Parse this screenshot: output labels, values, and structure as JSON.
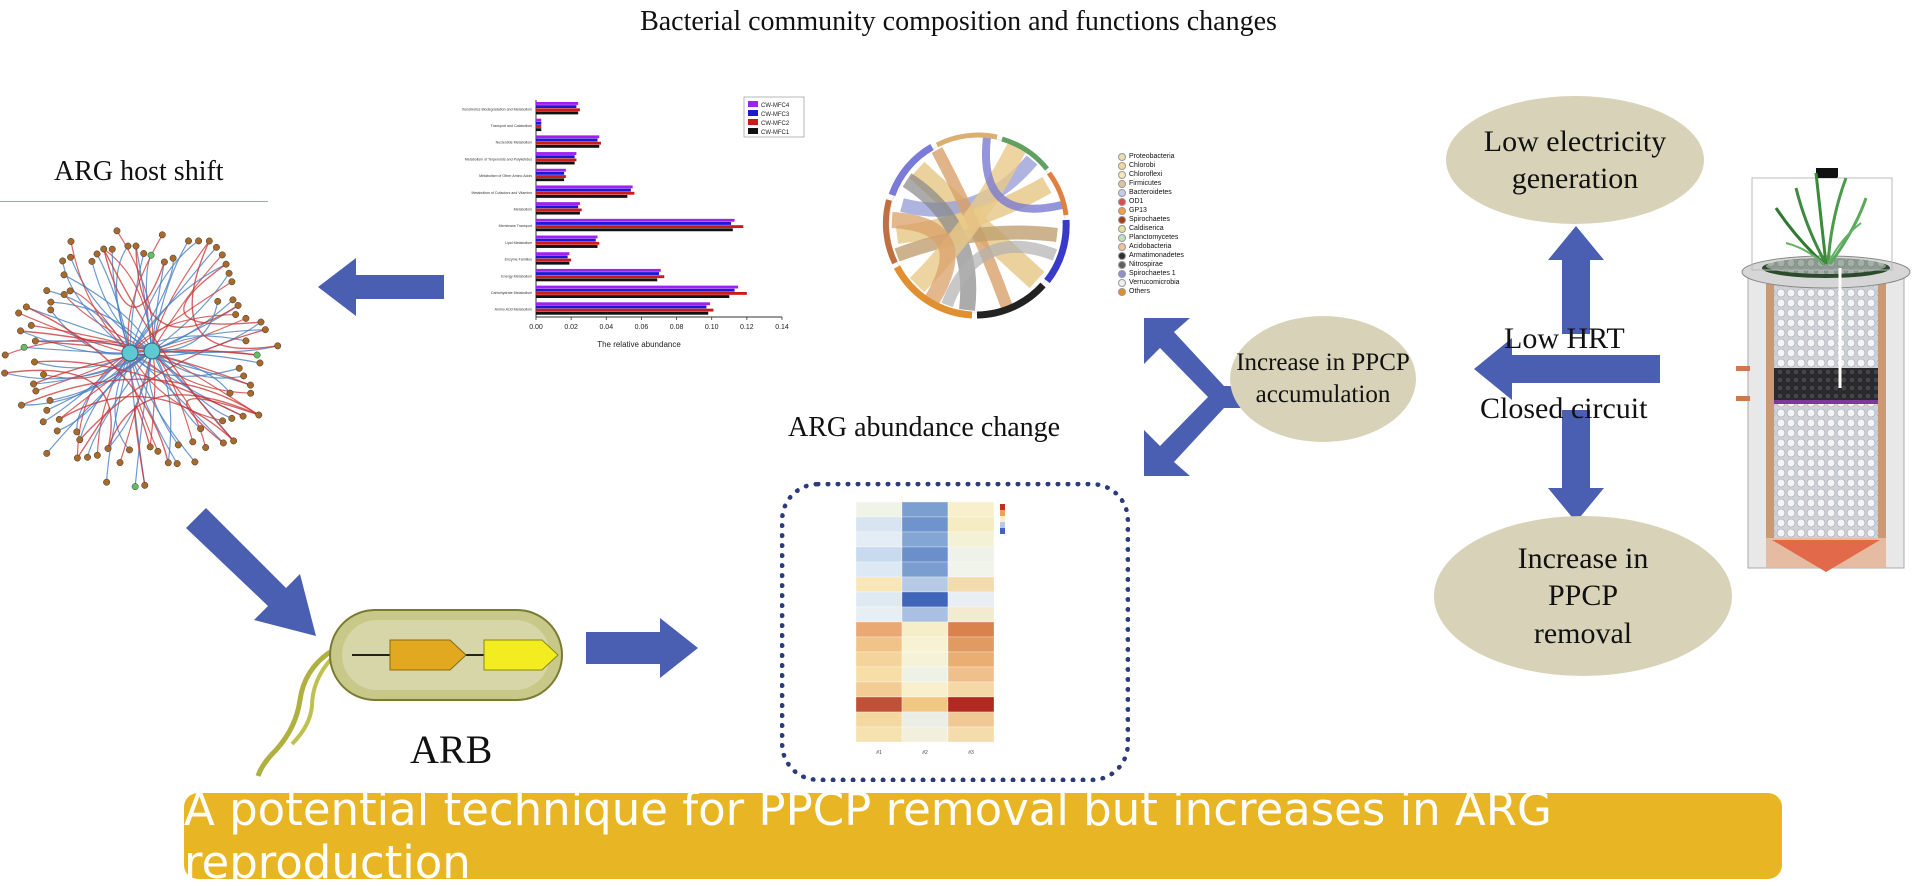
{
  "title": "Bacterial  community composition and functions changes",
  "arg_host_shift_label": "ARG host shift",
  "arb_label": "ARB",
  "arg_abundance_label": "ARG abundance change",
  "increase_accumulation": "Increase in PPCP accumulation",
  "low_hrt": "Low HRT",
  "closed_circuit": "Closed circuit",
  "low_electricity": "Low electricity generation",
  "increase_removal": "Increase in PPCP removal",
  "banner": "A potential technique for PPCP removal but increases in ARG reproduction",
  "colors": {
    "arrow": "#4a5fb2",
    "oval": "#d8d3b8",
    "banner": "#e8b624",
    "heatmap_border": "#2b3a7a"
  },
  "chart_data": {
    "type": "bar",
    "orientation": "horizontal",
    "xlabel": "The relative abundance",
    "xlim": [
      0.0,
      0.14
    ],
    "xticks": [
      "0.00",
      "0.02",
      "0.04",
      "0.06",
      "0.08",
      "0.10",
      "0.12",
      "0.14"
    ],
    "categories": [
      "Xenobiotics Biodegradation and Metabolism",
      "Transport and Catabolism",
      "Nucleotide Metabolism",
      "Metabolism of Terpenoids and Polyketides",
      "Metabolism of Other Amino Acids",
      "Metabolism of Cofactors and Vitamins",
      "Metabolism",
      "Membrane Transport",
      "Lipid Metabolism",
      "Enzyme Families",
      "Energy Metabolism",
      "Carbohydrate Metabolism",
      "Amino Acid Metabolism"
    ],
    "series": [
      {
        "name": "CW-MFC4",
        "color": "#a020f0",
        "values": [
          0.024,
          0.003,
          0.036,
          0.023,
          0.017,
          0.055,
          0.025,
          0.113,
          0.035,
          0.019,
          0.071,
          0.115,
          0.099
        ]
      },
      {
        "name": "CW-MFC3",
        "color": "#1a1ad6",
        "values": [
          0.023,
          0.003,
          0.035,
          0.022,
          0.016,
          0.054,
          0.024,
          0.111,
          0.034,
          0.018,
          0.07,
          0.113,
          0.097
        ]
      },
      {
        "name": "CW-MFC2",
        "color": "#cc1a1a",
        "values": [
          0.025,
          0.003,
          0.037,
          0.023,
          0.017,
          0.056,
          0.026,
          0.118,
          0.036,
          0.02,
          0.073,
          0.12,
          0.101
        ]
      },
      {
        "name": "CW-MFC1",
        "color": "#111111",
        "values": [
          0.024,
          0.003,
          0.036,
          0.022,
          0.016,
          0.052,
          0.025,
          0.112,
          0.035,
          0.019,
          0.069,
          0.11,
          0.098
        ]
      }
    ],
    "grid": false,
    "legend_position": "top-right"
  },
  "chord_legend": [
    {
      "name": "Proteobacteria",
      "color": "#e8e0b0"
    },
    {
      "name": "Chlorobi",
      "color": "#f3d9a0"
    },
    {
      "name": "Chloroflexi",
      "color": "#f5e8b8"
    },
    {
      "name": "Firmicutes",
      "color": "#d9c6a0"
    },
    {
      "name": "Bacteroidetes",
      "color": "#c9c9f0"
    },
    {
      "name": "OD1",
      "color": "#e04a4a"
    },
    {
      "name": "GP13",
      "color": "#f0a040"
    },
    {
      "name": "Spirochaetes",
      "color": "#a04020"
    },
    {
      "name": "Caldiserica",
      "color": "#e0e0a0"
    },
    {
      "name": "Planctomycetes",
      "color": "#c0e0c0"
    },
    {
      "name": "Acidobacteria",
      "color": "#f0c0a0"
    },
    {
      "name": "Armatimonadetes",
      "color": "#303030"
    },
    {
      "name": "Nitrospirae",
      "color": "#606060"
    },
    {
      "name": "Spirochaetes 1",
      "color": "#9090d0"
    },
    {
      "name": "Verrucomicrobia",
      "color": "#f0f0f0"
    },
    {
      "name": "Others",
      "color": "#e09020"
    }
  ],
  "heatmap": {
    "columns": [
      "#1",
      "#2",
      "#3"
    ],
    "rows": [
      {
        "c": [
          "#f0f4e8",
          "#7a9fd0",
          "#f8f0cc"
        ]
      },
      {
        "c": [
          "#d8e4f2",
          "#6f93cc",
          "#f6ecc4"
        ]
      },
      {
        "c": [
          "#e4ecf6",
          "#84a6d4",
          "#f4f2d6"
        ]
      },
      {
        "c": [
          "#c8daee",
          "#6a8fcb",
          "#eef2e8"
        ]
      },
      {
        "c": [
          "#dce8f4",
          "#7b9ed0",
          "#f0f4ea"
        ]
      },
      {
        "c": [
          "#f6e6b8",
          "#b6cae6",
          "#f2dcae"
        ]
      },
      {
        "c": [
          "#dfe9f3",
          "#3f66b8",
          "#e8eef4"
        ]
      },
      {
        "c": [
          "#e8eef2",
          "#a9c0e0",
          "#f4ead0"
        ]
      },
      {
        "c": [
          "#eaa874",
          "#f6eec8",
          "#d9824e"
        ]
      },
      {
        "c": [
          "#f0c488",
          "#f8f2d4",
          "#e09a62"
        ]
      },
      {
        "c": [
          "#f4d49a",
          "#f6f2d8",
          "#eaae72"
        ]
      },
      {
        "c": [
          "#f6dea6",
          "#eef2e6",
          "#f0c08c"
        ]
      },
      {
        "c": [
          "#f2cc94",
          "#f8f0cc",
          "#f4d8a6"
        ]
      },
      {
        "c": [
          "#c0503a",
          "#f0c884",
          "#b02a22"
        ]
      },
      {
        "c": [
          "#f4d8a0",
          "#eaeee6",
          "#f0c894"
        ]
      },
      {
        "c": [
          "#f6e2b0",
          "#f2f0dc",
          "#f4dcac"
        ]
      }
    ]
  }
}
